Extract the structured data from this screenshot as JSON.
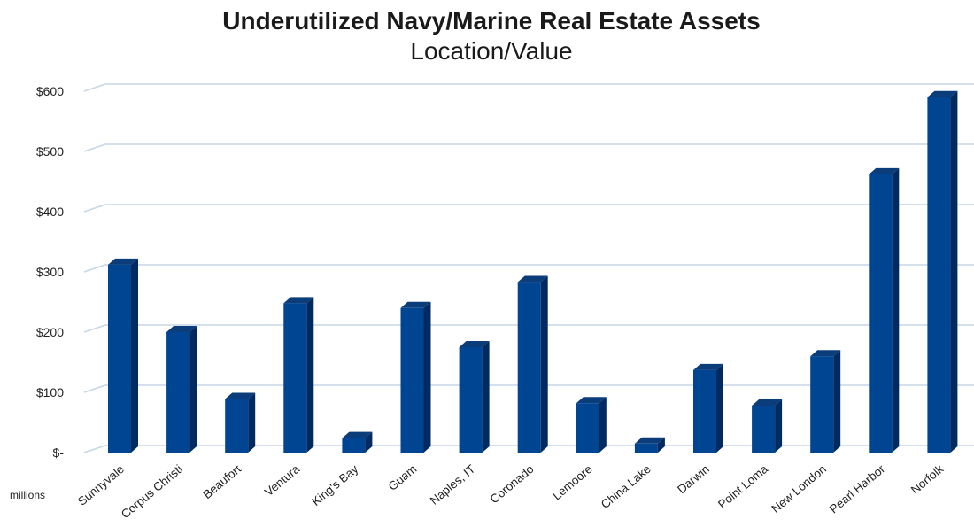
{
  "chart_data": {
    "type": "bar",
    "title": "Underutilized Navy/Marine Real Estate Assets",
    "subtitle": "Location/Value",
    "units_label": "millions",
    "categories": [
      "Sunnyvale",
      "Corpus Christi",
      "Beaufort",
      "Ventura",
      "King's Bay",
      "Guam",
      "Naples, IT",
      "Coronado",
      "Lemoore",
      "China Lake",
      "Darwin",
      "Point Loma",
      "New London",
      "Pearl Harbor",
      "Norfolk"
    ],
    "values": [
      312,
      200,
      89,
      248,
      24,
      240,
      175,
      283,
      82,
      15,
      137,
      78,
      160,
      462,
      590
    ],
    "ylim": [
      0,
      600
    ],
    "yticks": [
      0,
      100,
      200,
      300,
      400,
      500,
      600
    ],
    "ytick_labels": [
      "$-",
      "$100",
      "$200",
      "$300",
      "$400",
      "$500",
      "$600"
    ],
    "grid": true,
    "bar_color": "#004592",
    "bar_side_color": "#002a60",
    "bar_top_color": "#0b3d7a",
    "grid_color": "#c6d6e6"
  }
}
